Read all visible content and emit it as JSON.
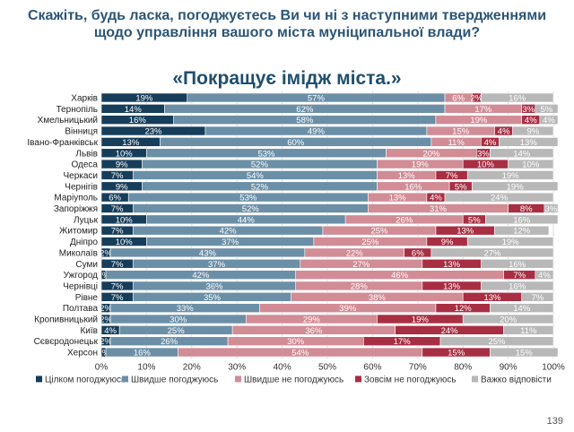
{
  "page": {
    "title": "Скажіть, будь ласка, погоджуєтесь Ви чи ні з наступними твердженнями щодо управління вашого міста муніципальної влади?",
    "subtitle": "«Покращує імідж міста.»",
    "page_number": "139"
  },
  "chart_data": {
    "type": "bar",
    "orientation": "horizontal",
    "stacked": true,
    "title": "«Покращує імідж міста.»",
    "categories": [
      "Харків",
      "Тернопіль",
      "Хмельницький",
      "Вінниця",
      "Івано-Франківськ",
      "Львів",
      "Одеса",
      "Черкаси",
      "Чернігів",
      "Маріуполь",
      "Запоріжжя",
      "Луцьк",
      "Житомир",
      "Дніпро",
      "Миколаїв",
      "Суми",
      "Ужгород",
      "Чернівці",
      "Рівне",
      "Полтава",
      "Кропивницький",
      "Київ",
      "Сєвєродонецьк",
      "Херсон"
    ],
    "series": [
      {
        "name": "Цілком погоджуюсь",
        "color": "#163d5a",
        "values": [
          19,
          14,
          16,
          23,
          13,
          10,
          9,
          7,
          9,
          6,
          7,
          10,
          7,
          10,
          2,
          7,
          1,
          7,
          7,
          2,
          2,
          4,
          2,
          1
        ]
      },
      {
        "name": "Швидше погоджуюсь",
        "color": "#6b8fa6",
        "values": [
          57,
          62,
          58,
          49,
          60,
          53,
          52,
          54,
          52,
          53,
          52,
          44,
          42,
          37,
          43,
          37,
          42,
          36,
          35,
          33,
          30,
          25,
          26,
          16
        ]
      },
      {
        "name": "Швидше не погоджуюсь",
        "color": "#d18c96",
        "values": [
          6,
          17,
          19,
          15,
          11,
          20,
          19,
          13,
          16,
          13,
          31,
          26,
          25,
          25,
          22,
          27,
          46,
          28,
          38,
          39,
          29,
          36,
          30,
          54
        ]
      },
      {
        "name": "Зовсім не погоджуюсь",
        "color": "#a82e43",
        "values": [
          2,
          3,
          4,
          4,
          4,
          3,
          10,
          7,
          5,
          4,
          8,
          5,
          13,
          9,
          6,
          13,
          7,
          13,
          13,
          12,
          19,
          24,
          17,
          15
        ]
      },
      {
        "name": "Важко відповісти",
        "color": "#b8b8b8",
        "values": [
          16,
          5,
          4,
          9,
          13,
          14,
          10,
          19,
          19,
          24,
          3,
          16,
          12,
          19,
          27,
          16,
          4,
          16,
          7,
          14,
          20,
          11,
          25,
          15
        ]
      }
    ],
    "x_tick_labels": [
      "0%",
      "10%",
      "20%",
      "30%",
      "40%",
      "50%",
      "60%",
      "70%",
      "80%",
      "90%",
      "100%"
    ],
    "xlim": [
      0,
      100
    ],
    "legend_position": "bottom",
    "grid": true
  }
}
